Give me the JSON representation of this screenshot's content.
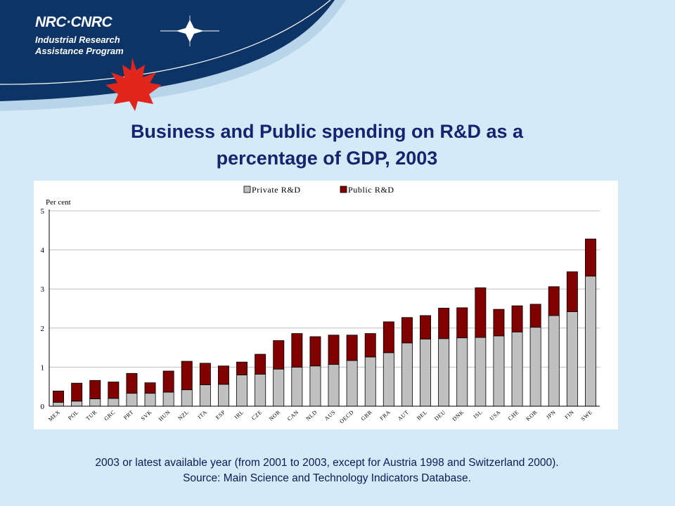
{
  "header": {
    "logo": "NRC·CNRC",
    "program_line1": "Industrial Research",
    "program_line2": "Assistance Program"
  },
  "title": {
    "line1": "Business and Public spending on R&D as a",
    "line2": "percentage of GDP, 2003"
  },
  "footnote": {
    "line1": "2003 or latest available year (from 2001 to 2003, except for Austria 1998 and Switzerland 2000).",
    "line2": "Source:  Main Science and Technology Indicators Database."
  },
  "colors": {
    "private": "#c0c0c0",
    "public": "#800000",
    "title": "#14246e",
    "background": "#d4eaf7",
    "banner_dark": "#0d3466"
  },
  "chart_data": {
    "type": "bar",
    "stacked": true,
    "ylabel": "Per cent",
    "ylim": [
      0,
      5
    ],
    "yticks": [
      0,
      1,
      2,
      3,
      4,
      5
    ],
    "grid": true,
    "legend_position": "top-center",
    "categories": [
      "MEX",
      "POL",
      "TUR",
      "GRC",
      "PRT",
      "SVK",
      "HUN",
      "NZL",
      "ITA",
      "ESP",
      "IRL",
      "CZE",
      "NOR",
      "CAN",
      "NLD",
      "AUS",
      "OECD",
      "GBR",
      "FRA",
      "AUT",
      "BEL",
      "DEU",
      "DNK",
      "ISL",
      "USA",
      "CHE",
      "KOR",
      "JPN",
      "FIN",
      "SWE"
    ],
    "series": [
      {
        "name": "Private R&D",
        "color": "#c0c0c0",
        "values": [
          0.1,
          0.13,
          0.19,
          0.2,
          0.33,
          0.33,
          0.36,
          0.42,
          0.55,
          0.56,
          0.8,
          0.82,
          0.95,
          1.0,
          1.03,
          1.07,
          1.17,
          1.26,
          1.37,
          1.62,
          1.72,
          1.73,
          1.75,
          1.76,
          1.8,
          1.9,
          2.02,
          2.32,
          2.42,
          3.33
        ]
      },
      {
        "name": "Public R&D",
        "color": "#800000",
        "values": [
          0.29,
          0.46,
          0.47,
          0.42,
          0.51,
          0.27,
          0.54,
          0.73,
          0.55,
          0.47,
          0.33,
          0.51,
          0.73,
          0.86,
          0.75,
          0.75,
          0.65,
          0.6,
          0.79,
          0.65,
          0.6,
          0.78,
          0.77,
          1.27,
          0.68,
          0.67,
          0.59,
          0.74,
          1.02,
          0.95
        ]
      }
    ]
  }
}
